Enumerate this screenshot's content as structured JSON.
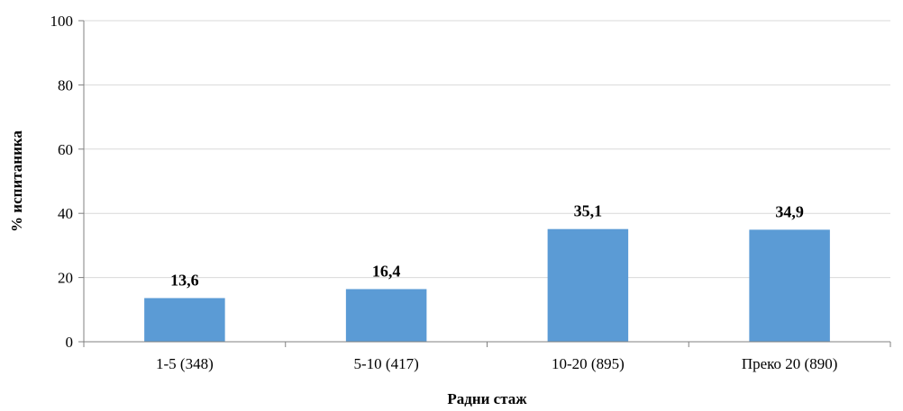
{
  "chart_data": {
    "type": "bar",
    "categories": [
      "1-5 (348)",
      "5-10 (417)",
      "10-20 (895)",
      "Преко 20 (890)"
    ],
    "values": [
      13.6,
      16.4,
      35.1,
      34.9
    ],
    "value_labels": [
      "13,6",
      "16,4",
      "35,1",
      "34,9"
    ],
    "xlabel": "Радни стаж",
    "ylabel": "% испитаника",
    "ylim": [
      0,
      100
    ],
    "yticks": [
      0,
      20,
      40,
      60,
      80,
      100
    ],
    "grid": true,
    "bar_color": "#5b9bd5"
  }
}
